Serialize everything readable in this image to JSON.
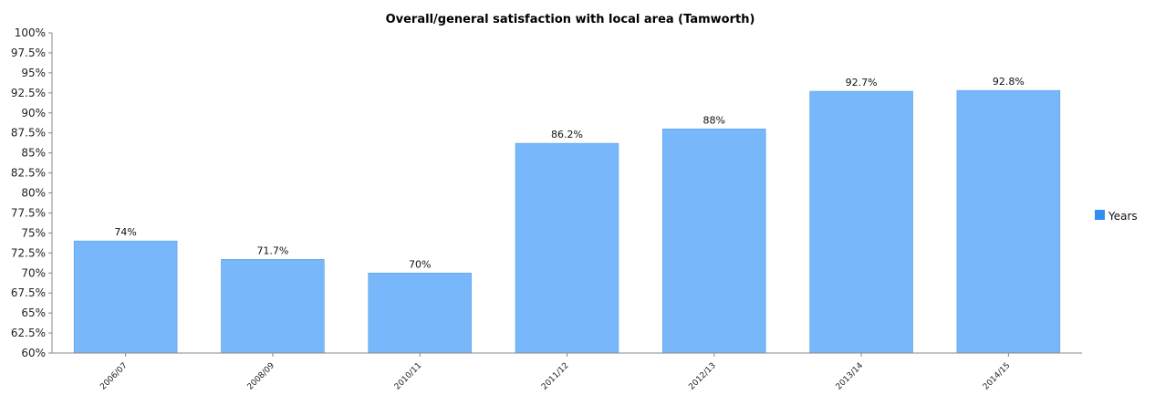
{
  "chart_data": {
    "type": "bar",
    "title": "Overall/general satisfaction with local area (Tamworth)",
    "xlabel": "",
    "ylabel": "",
    "categories": [
      "2006/07",
      "2008/09",
      "2010/11",
      "2011/12",
      "2012/13",
      "2013/14",
      "2014/15"
    ],
    "series": [
      {
        "name": "Years",
        "values": [
          74,
          71.7,
          70,
          86.2,
          88,
          92.7,
          92.8
        ],
        "labels": [
          "74%",
          "71.7%",
          "70%",
          "86.2%",
          "88%",
          "92.7%",
          "92.8%"
        ]
      }
    ],
    "ylim": [
      60,
      100
    ],
    "yticks": [
      "60%",
      "62.5%",
      "65%",
      "67.5%",
      "70%",
      "72.5%",
      "75%",
      "77.5%",
      "80%",
      "82.5%",
      "85%",
      "87.5%",
      "90%",
      "92.5%",
      "95%",
      "97.5%",
      "100%"
    ],
    "grid": false,
    "legend": "right",
    "colors": {
      "bar": "#78b8fa",
      "bar_edge": "#5a9ee8",
      "axis": "#888888"
    }
  }
}
